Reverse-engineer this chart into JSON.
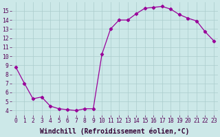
{
  "x": [
    0,
    1,
    2,
    3,
    4,
    5,
    6,
    7,
    8,
    9,
    10,
    11,
    12,
    13,
    14,
    15,
    16,
    17,
    18,
    19,
    20,
    21,
    22,
    23
  ],
  "y": [
    8.8,
    7.0,
    5.3,
    5.5,
    4.5,
    4.2,
    4.1,
    4.0,
    4.2,
    4.2,
    10.2,
    13.0,
    14.0,
    14.0,
    14.7,
    15.3,
    15.4,
    15.5,
    15.2,
    14.6,
    14.2,
    13.9,
    12.7,
    11.7
  ],
  "xlim": [
    -0.5,
    23.5
  ],
  "ylim": [
    3.5,
    16.0
  ],
  "yticks": [
    4,
    5,
    6,
    7,
    8,
    9,
    10,
    11,
    12,
    13,
    14,
    15
  ],
  "xticks": [
    0,
    1,
    2,
    3,
    4,
    5,
    6,
    7,
    8,
    9,
    10,
    11,
    12,
    13,
    14,
    15,
    16,
    17,
    18,
    19,
    20,
    21,
    22,
    23
  ],
  "xlabel": "Windchill (Refroidissement éolien,°C)",
  "line_color": "#990099",
  "marker": "D",
  "marker_size": 2.2,
  "bg_color": "#cce8e8",
  "grid_color": "#aacccc",
  "tick_label_fontsize": 5.8,
  "xlabel_fontsize": 7.0
}
